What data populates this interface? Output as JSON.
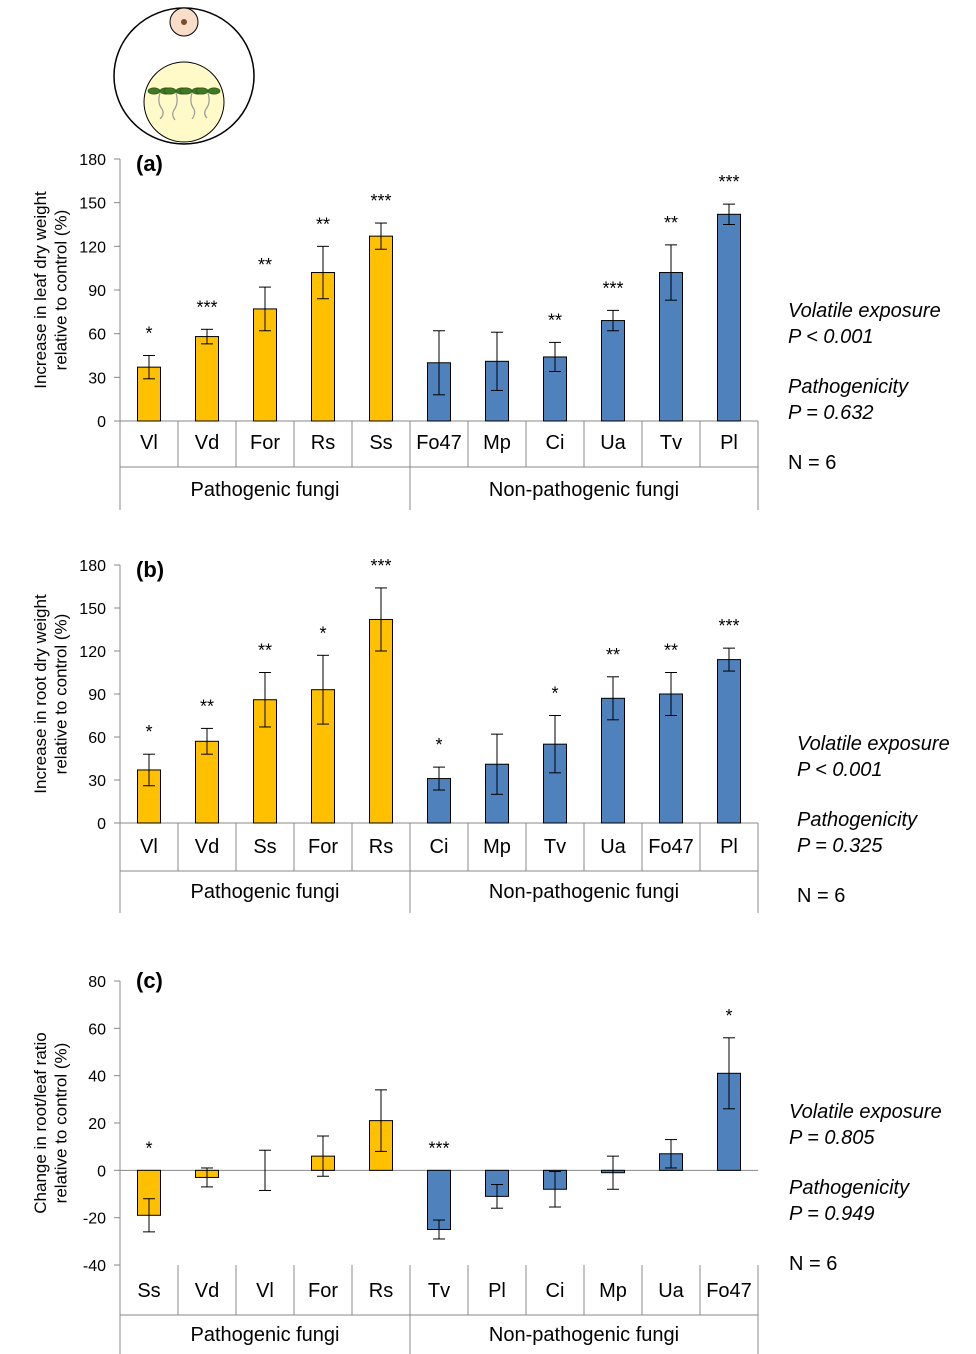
{
  "chart_data": [
    {
      "type": "bar",
      "panel_label": "(a)",
      "ylabel_lines": [
        "Increase in leaf dry weight",
        "relative to control (%)"
      ],
      "ylim": [
        0,
        180
      ],
      "yticks": [
        0,
        30,
        60,
        90,
        120,
        150,
        180
      ],
      "grid": false,
      "categories": [
        "Vl",
        "Vd",
        "For",
        "Rs",
        "Ss",
        "Fo47",
        "Mp",
        "Ci",
        "Ua",
        "Tv",
        "Pl"
      ],
      "groups": [
        {
          "label": "Pathogenic fungi",
          "count": 5,
          "color": "#FFC000"
        },
        {
          "label": "Non-pathogenic fungi",
          "count": 6,
          "color": "#4F81BD"
        }
      ],
      "values": [
        37,
        58,
        77,
        102,
        127,
        40,
        41,
        44,
        69,
        102,
        142
      ],
      "errors": [
        8,
        5,
        15,
        18,
        9,
        22,
        20,
        10,
        7,
        19,
        7
      ],
      "significance": [
        "*",
        "***",
        "**",
        "**",
        "***",
        "",
        "",
        "**",
        "***",
        "**",
        "***"
      ],
      "stats": {
        "volatile_label": "Volatile exposure",
        "volatile_p": "P < 0.001",
        "pathogenicity_label": "Pathogenicity",
        "pathogenicity_p": "P = 0.632",
        "n": "N = 6"
      }
    },
    {
      "type": "bar",
      "panel_label": "(b)",
      "ylabel_lines": [
        "Increase in root dry weight",
        "relative to control (%)"
      ],
      "ylim": [
        0,
        180
      ],
      "yticks": [
        0,
        30,
        60,
        90,
        120,
        150,
        180
      ],
      "grid": false,
      "categories": [
        "Vl",
        "Vd",
        "Ss",
        "For",
        "Rs",
        "Ci",
        "Mp",
        "Tv",
        "Ua",
        "Fo47",
        "Pl"
      ],
      "groups": [
        {
          "label": "Pathogenic fungi",
          "count": 5,
          "color": "#FFC000"
        },
        {
          "label": "Non-pathogenic fungi",
          "count": 6,
          "color": "#4F81BD"
        }
      ],
      "values": [
        37,
        57,
        86,
        93,
        142,
        31,
        41,
        55,
        87,
        90,
        114
      ],
      "errors": [
        11,
        9,
        19,
        24,
        22,
        8,
        21,
        20,
        15,
        15,
        8
      ],
      "significance": [
        "*",
        "**",
        "**",
        "*",
        "***",
        "*",
        "",
        "*",
        "**",
        "**",
        "***"
      ],
      "stats": {
        "volatile_label": "Volatile exposure",
        "volatile_p": "P < 0.001",
        "pathogenicity_label": "Pathogenicity",
        "pathogenicity_p": "P = 0.325",
        "n": "N = 6"
      }
    },
    {
      "type": "bar",
      "panel_label": "(c)",
      "ylabel_lines": [
        "Change in root/leaf ratio",
        "relative to control (%)"
      ],
      "ylim": [
        -40,
        80
      ],
      "yticks": [
        -40,
        -20,
        0,
        20,
        40,
        60,
        80
      ],
      "grid": false,
      "categories": [
        "Ss",
        "Vd",
        "Vl",
        "For",
        "Rs",
        "Tv",
        "Pl",
        "Ci",
        "Mp",
        "Ua",
        "Fo47"
      ],
      "groups": [
        {
          "label": "Pathogenic fungi",
          "count": 5,
          "color": "#FFC000"
        },
        {
          "label": "Non-pathogenic fungi",
          "count": 6,
          "color": "#4F81BD"
        }
      ],
      "values": [
        -19,
        -3,
        0,
        6,
        21,
        -25,
        -11,
        -8,
        -1,
        7,
        41
      ],
      "errors": [
        7,
        4,
        8.5,
        8.5,
        13,
        4,
        5,
        7.5,
        7,
        6,
        15
      ],
      "significance": [
        "*",
        "",
        "",
        "",
        "",
        "***",
        "",
        "",
        "",
        "",
        "*"
      ],
      "stats": {
        "volatile_label": "Volatile exposure",
        "volatile_p": "P = 0.805",
        "pathogenicity_label": "Pathogenicity",
        "pathogenicity_p": "P = 0.949",
        "n": "N = 6"
      }
    }
  ]
}
